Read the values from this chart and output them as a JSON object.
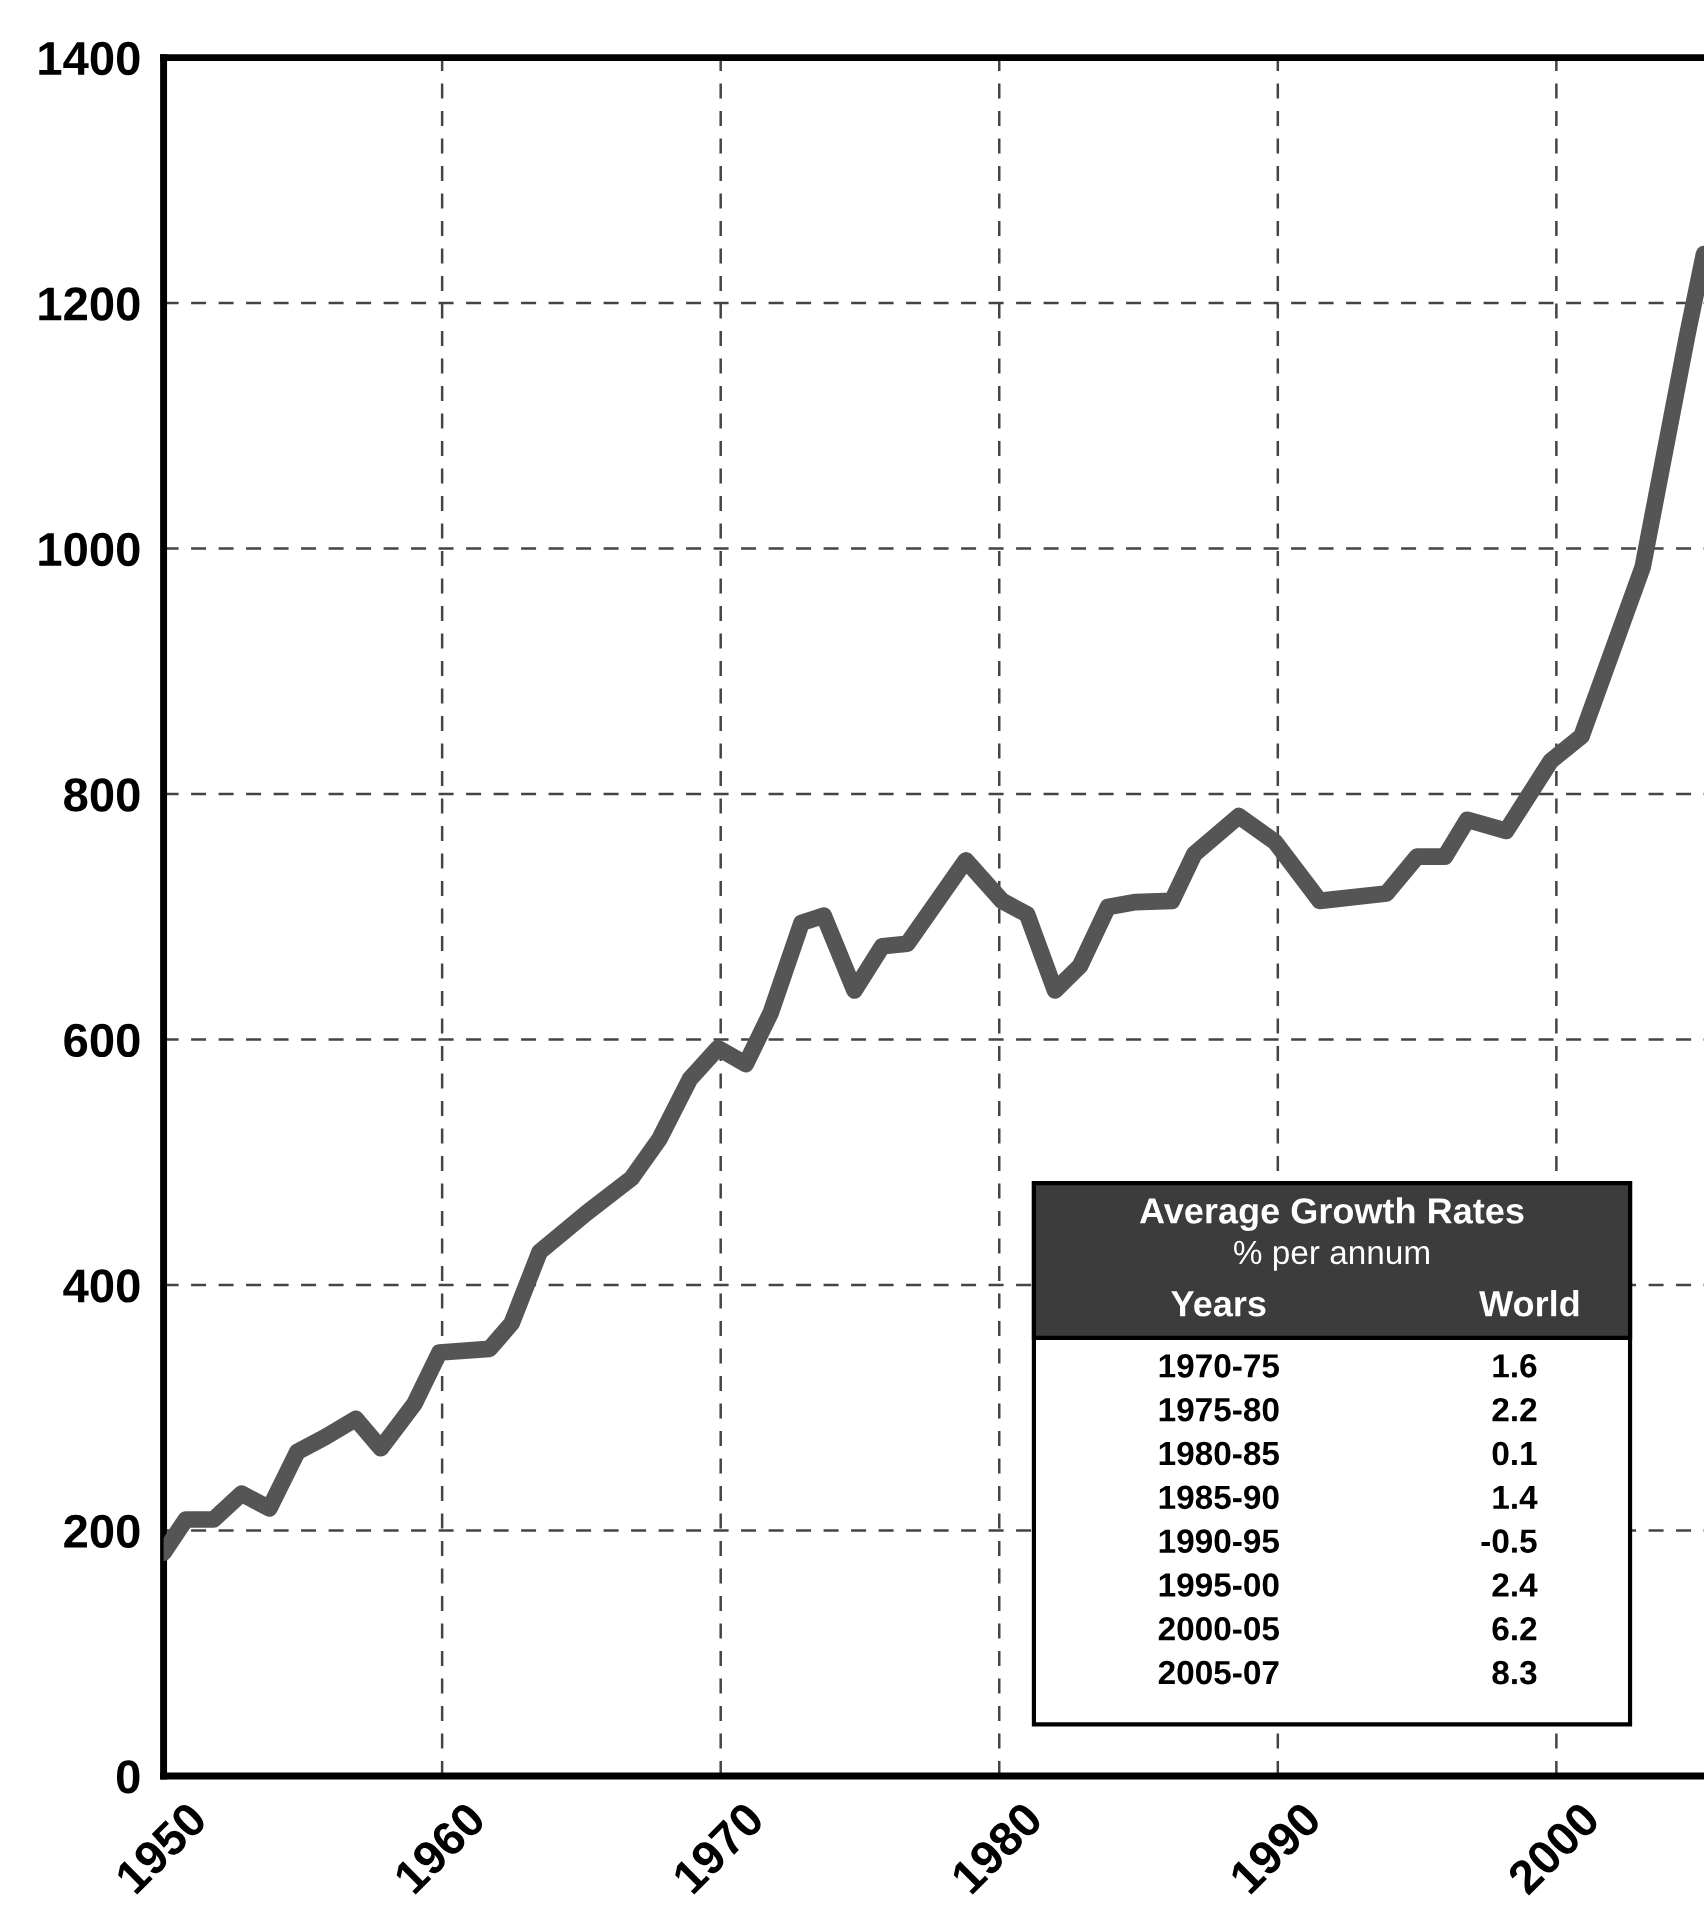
{
  "chart_data": {
    "type": "line",
    "x": [
      1950,
      1950.8,
      1951.8,
      1952.8,
      1953.8,
      1954.8,
      1955.8,
      1956.9,
      1957.8,
      1959,
      1959.9,
      1961.7,
      1962.5,
      1963.5,
      1965.2,
      1966.8,
      1967.8,
      1968.9,
      1969.9,
      1970.9,
      1971.8,
      1972.9,
      1973.7,
      1974.8,
      1975.8,
      1976.7,
      1978.8,
      1980.1,
      1981,
      1982,
      1982.9,
      1983.9,
      1984.9,
      1986.2,
      1987,
      1988.6,
      1989.9,
      1991.5,
      1993.9,
      1995,
      1996,
      1996.8,
      1998.2,
      1999.8,
      2000.9,
      2003.1,
      2004.7,
      2005.3
    ],
    "series": [
      {
        "color": "#555555",
        "values": [
          182,
          209,
          209,
          230,
          218,
          264,
          276,
          291,
          267,
          303,
          345,
          348,
          369,
          427,
          459,
          487,
          519,
          568,
          593,
          580,
          622,
          695,
          701,
          640,
          676,
          678,
          746,
          713,
          702,
          640,
          660,
          708,
          712,
          713,
          751,
          782,
          761,
          713,
          719,
          749,
          749,
          779,
          770,
          827,
          847,
          985,
          1174,
          1240
        ]
      }
    ],
    "xlim": [
      1950,
      2005.3
    ],
    "ylim": [
      0,
      1400
    ],
    "xticks": [
      1950,
      1960,
      1970,
      1980,
      1990,
      2000
    ],
    "yticks": [
      0,
      200,
      400,
      600,
      800,
      1000,
      1200,
      1400
    ],
    "grid": true,
    "line_style": "solid",
    "marker": "none",
    "annotations": [
      "Average Growth Rates",
      "% per annum",
      "Years",
      "World",
      "1970-75",
      "1.6",
      "1975-80",
      "2.2",
      "1980-85",
      "0.1",
      "1985-90",
      "1.4",
      "1990-95",
      "-0.5",
      "1995-00",
      "2.4",
      "2000-05",
      "6.2",
      "2005-07",
      "8.3"
    ]
  }
}
